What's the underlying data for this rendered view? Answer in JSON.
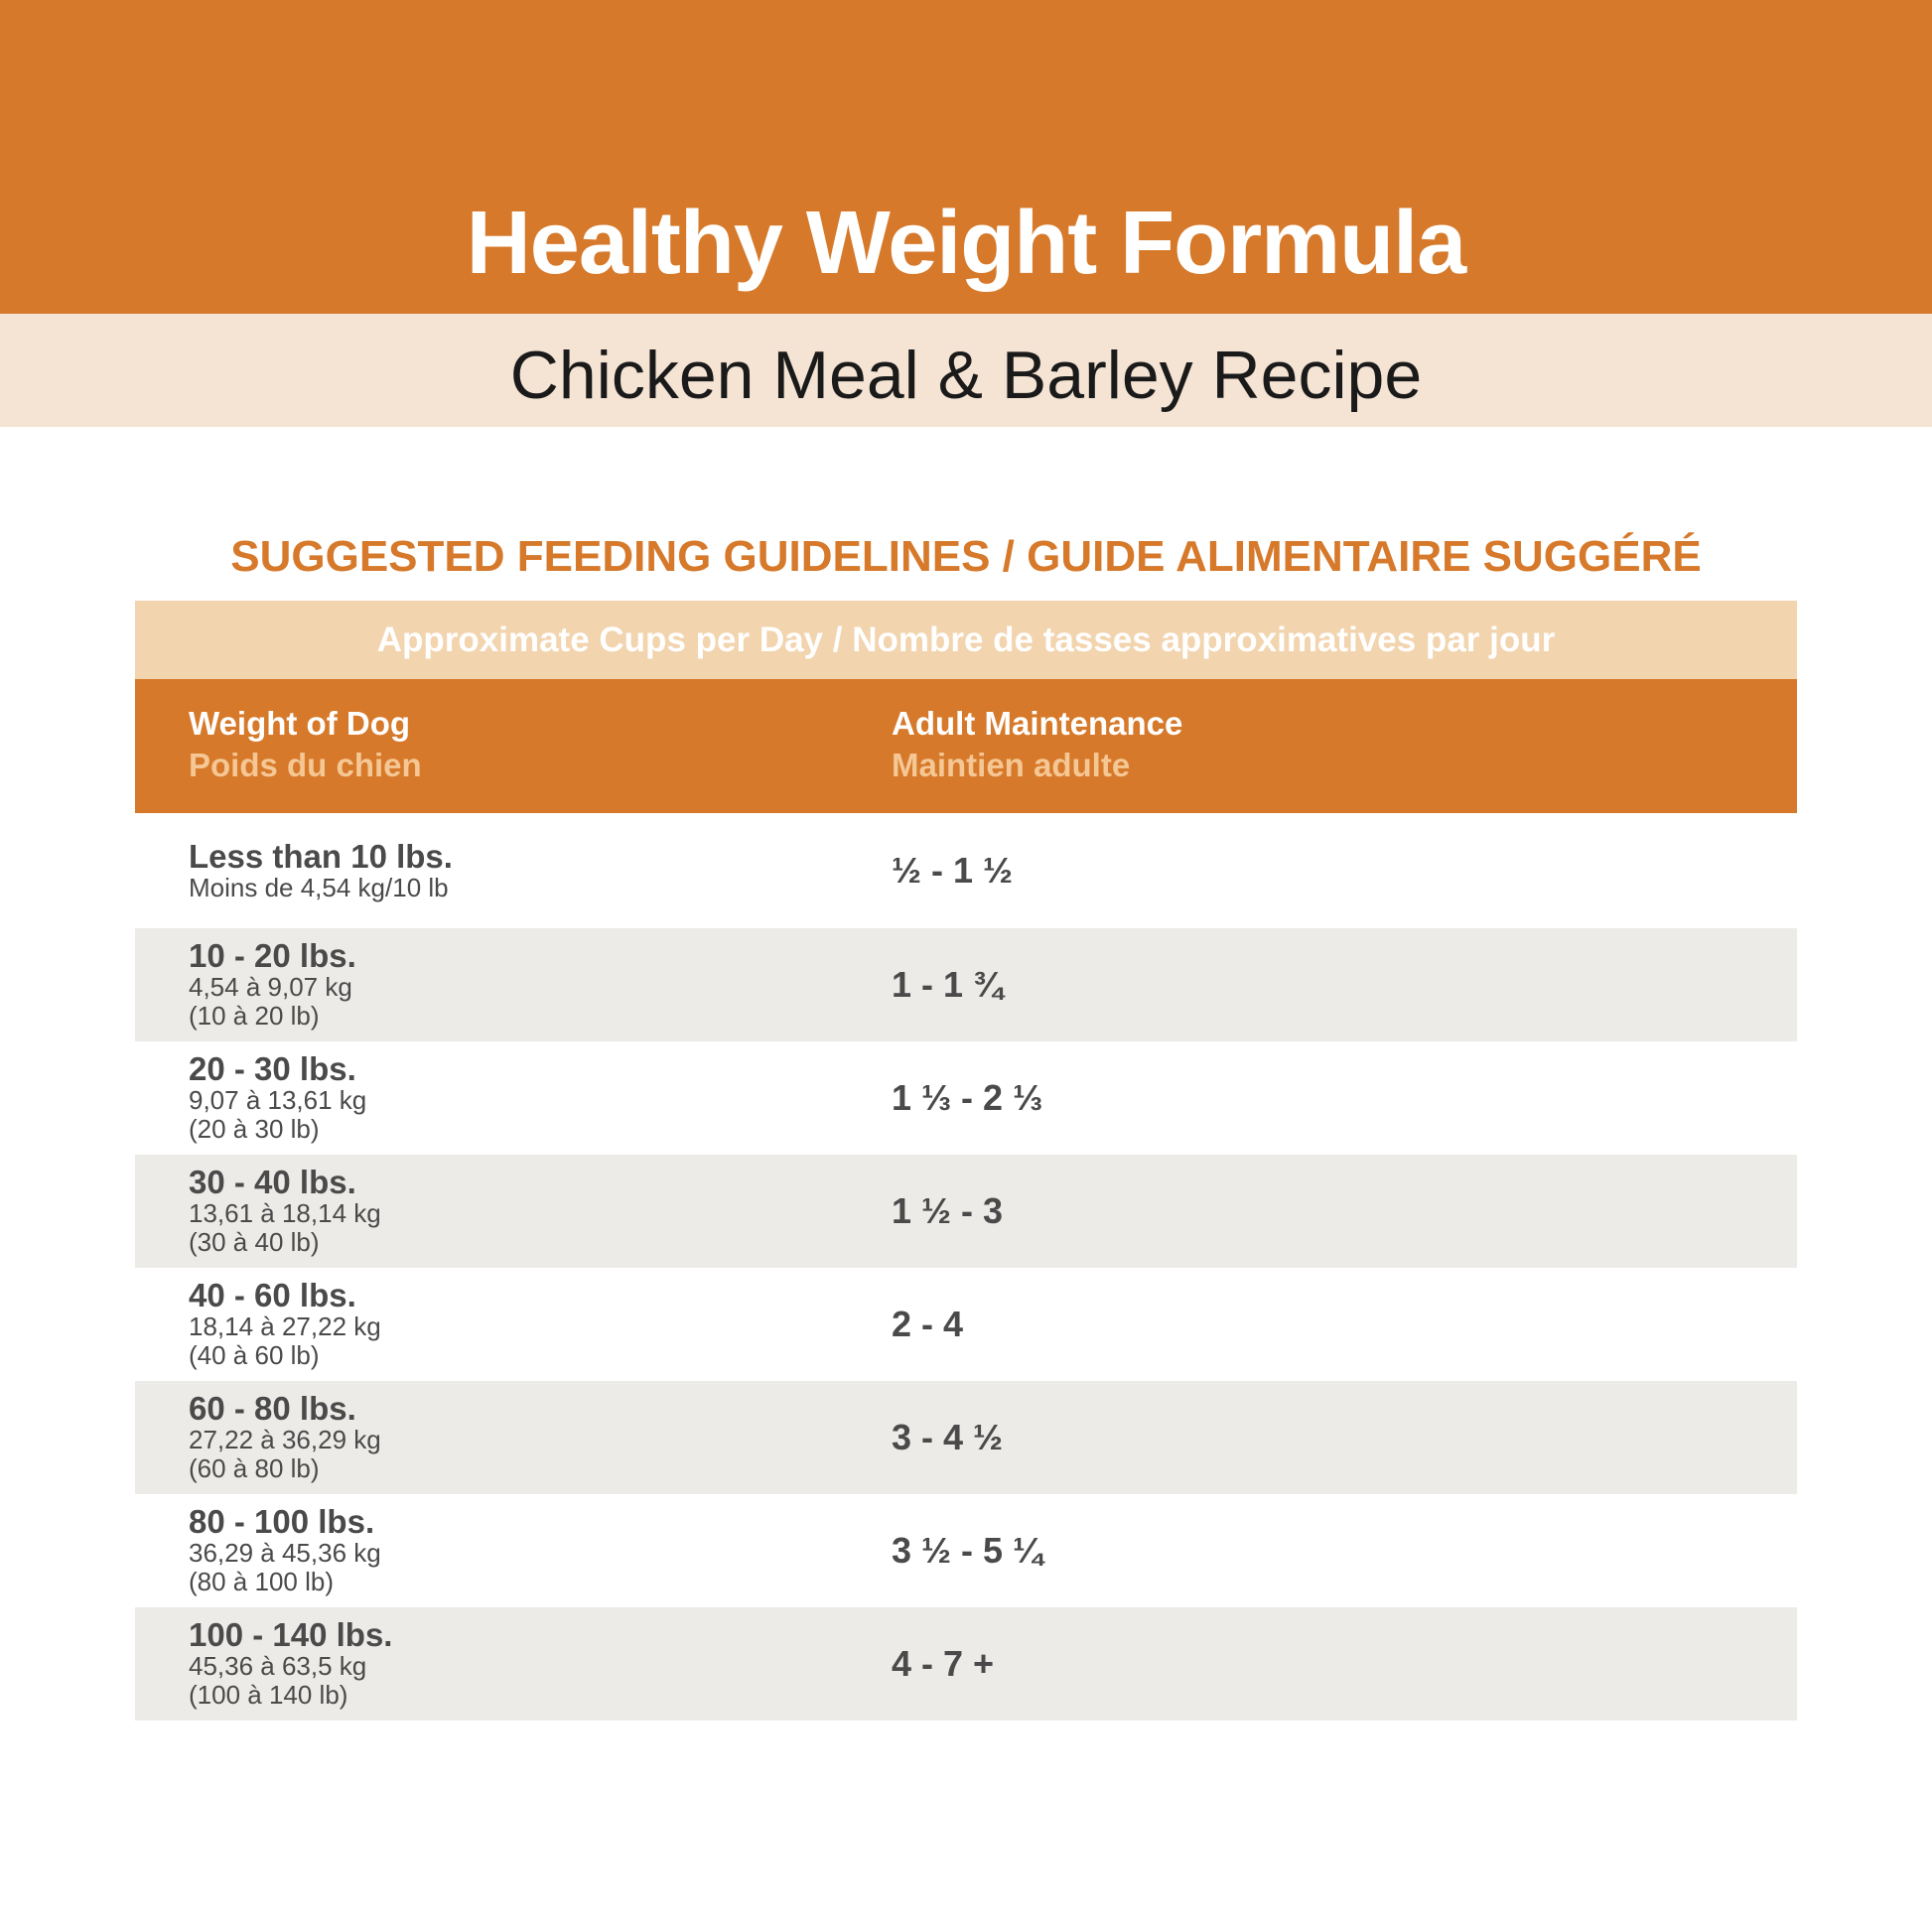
{
  "header": {
    "title": "Healthy Weight Formula",
    "subtitle": "Chicken Meal & Barley Recipe"
  },
  "section": {
    "heading": "SUGGESTED FEEDING GUIDELINES / GUIDE ALIMENTAIRE SUGGÉRÉ"
  },
  "table": {
    "banner": "Approximate Cups per Day / Nombre de tasses approximatives par jour",
    "columns": {
      "weight_en": "Weight of Dog",
      "weight_fr": "Poids du chien",
      "amount_en": "Adult Maintenance",
      "amount_fr": "Maintien adulte"
    },
    "rows": [
      {
        "weight": "Less than 10 lbs.",
        "metric": "Moins de 4,54 kg/10 lb",
        "metric_lb": "",
        "cups": "½ - 1 ½"
      },
      {
        "weight": "10 - 20 lbs.",
        "metric": "4,54 à 9,07 kg",
        "metric_lb": "(10 à 20 lb)",
        "cups": "1 - 1 ¾"
      },
      {
        "weight": "20 - 30 lbs.",
        "metric": "9,07 à 13,61 kg",
        "metric_lb": "(20 à 30 lb)",
        "cups": "1 ⅓ - 2 ⅓"
      },
      {
        "weight": "30 - 40 lbs.",
        "metric": "13,61 à 18,14 kg",
        "metric_lb": "(30 à 40 lb)",
        "cups": "1 ½ - 3"
      },
      {
        "weight": "40 - 60 lbs.",
        "metric": "18,14 à 27,22 kg",
        "metric_lb": "(40 à 60 lb)",
        "cups": "2 - 4"
      },
      {
        "weight": "60 - 80 lbs.",
        "metric": "27,22 à 36,29 kg",
        "metric_lb": "(60 à 80 lb)",
        "cups": "3 - 4 ½"
      },
      {
        "weight": "80 - 100 lbs.",
        "metric": "36,29 à 45,36 kg",
        "metric_lb": "(80 à 100 lb)",
        "cups": "3 ½ - 5 ¼"
      },
      {
        "weight": "100 - 140 lbs.",
        "metric": "45,36 à 63,5 kg",
        "metric_lb": "(100 à 140 lb)",
        "cups": "4 - 7 +"
      }
    ]
  },
  "colors": {
    "accent": "#d6792a",
    "cream": "#f5e4d4",
    "banner": "#f2d4ae",
    "row_alt": "#edebe8",
    "text": "#4a4a4a"
  }
}
